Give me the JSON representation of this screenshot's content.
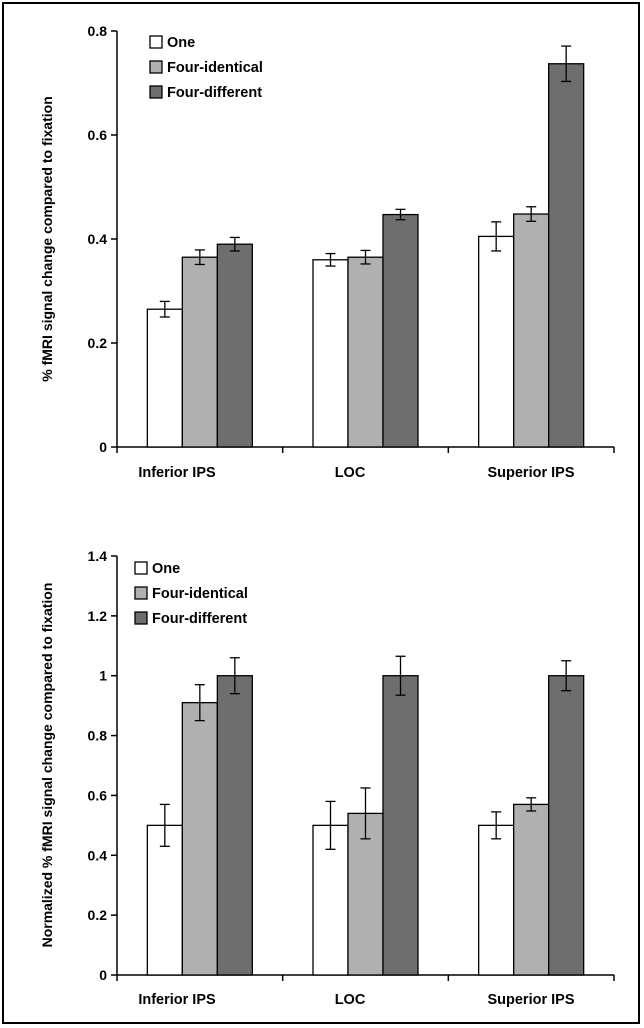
{
  "chart_data": [
    {
      "type": "bar",
      "title": "",
      "xlabel": "",
      "ylabel": "% fMRI signal change compared to fixation",
      "categories": [
        "Inferior IPS",
        "LOC",
        "Superior IPS"
      ],
      "ylim": [
        0,
        0.8
      ],
      "yticks": [
        "0",
        "0.2",
        "0.4",
        "0.6",
        "0.8"
      ],
      "ytick_values": [
        0,
        0.2,
        0.4,
        0.6,
        0.8
      ],
      "legend_position": "top-left",
      "series": [
        {
          "name": "One",
          "color": "#ffffff",
          "values": [
            0.265,
            0.36,
            0.405
          ],
          "errors": [
            0.015,
            0.012,
            0.028
          ]
        },
        {
          "name": "Four-identical",
          "color": "#b0b0b0",
          "values": [
            0.365,
            0.365,
            0.448
          ],
          "errors": [
            0.014,
            0.013,
            0.014
          ]
        },
        {
          "name": "Four-different",
          "color": "#6e6e6e",
          "values": [
            0.39,
            0.447,
            0.737
          ],
          "errors": [
            0.013,
            0.01,
            0.034
          ]
        }
      ]
    },
    {
      "type": "bar",
      "title": "",
      "xlabel": "",
      "ylabel": "Normalized % fMRI signal change compared to fixation",
      "categories": [
        "Inferior IPS",
        "LOC",
        "Superior IPS"
      ],
      "ylim": [
        0,
        1.4
      ],
      "yticks": [
        "0",
        "0.2",
        "0.4",
        "0.6",
        "0.8",
        "1",
        "1.2",
        "1.4"
      ],
      "ytick_values": [
        0,
        0.2,
        0.4,
        0.6,
        0.8,
        1,
        1.2,
        1.4
      ],
      "legend_position": "top-left",
      "series": [
        {
          "name": "One",
          "color": "#ffffff",
          "values": [
            0.5,
            0.5,
            0.5
          ],
          "errors": [
            0.07,
            0.08,
            0.045
          ]
        },
        {
          "name": "Four-identical",
          "color": "#b0b0b0",
          "values": [
            0.91,
            0.54,
            0.57
          ],
          "errors": [
            0.06,
            0.085,
            0.022
          ]
        },
        {
          "name": "Four-different",
          "color": "#6e6e6e",
          "values": [
            1.0,
            1.0,
            1.0
          ],
          "errors": [
            0.06,
            0.065,
            0.05
          ]
        }
      ]
    }
  ]
}
